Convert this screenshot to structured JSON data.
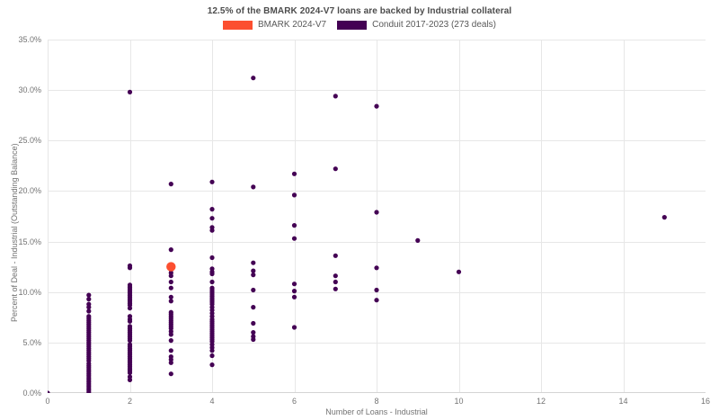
{
  "title": "12.5% of the BMARK 2024-V7 loans are backed by Industrial collateral",
  "legend": {
    "items": [
      {
        "label": "BMARK 2024-V7",
        "color": "#fc4f30"
      },
      {
        "label": "Conduit 2017-2023 (273 deals)",
        "color": "#440154"
      }
    ]
  },
  "colors": {
    "bmark": "#fc4f30",
    "conduit": "#440154",
    "grid": "#e7e7e7",
    "axis_line": "#d4d4d4",
    "tick_text": "#737373",
    "title_text": "#4c4c4c"
  },
  "chart_data": {
    "type": "scatter",
    "title": "12.5% of the BMARK 2024-V7 loans are backed by Industrial collateral",
    "xlabel": "Number of Loans - Industrial",
    "ylabel": "Percent of Deal - Industrial (Outstanding Balance)",
    "xlim": [
      0,
      16
    ],
    "ylim": [
      0,
      35
    ],
    "x_ticks": [
      0,
      2,
      4,
      6,
      8,
      10,
      12,
      14,
      16
    ],
    "y_ticks": [
      {
        "value": 0,
        "label": "0.0%"
      },
      {
        "value": 5,
        "label": "5.0%"
      },
      {
        "value": 10,
        "label": "10.0%"
      },
      {
        "value": 15,
        "label": "15.0%"
      },
      {
        "value": 20,
        "label": "20.0%"
      },
      {
        "value": 25,
        "label": "25.0%"
      },
      {
        "value": 30,
        "label": "30.0%"
      },
      {
        "value": 35,
        "label": "35.0%"
      }
    ],
    "grid": true,
    "legend_position": "top-center",
    "series": [
      {
        "name": "Conduit 2017-2023 (273 deals)",
        "color": "#440154",
        "marker_radius": 2.6,
        "points": [
          [
            0,
            0.0
          ],
          [
            1,
            9.7
          ],
          [
            1,
            9.3
          ],
          [
            1,
            8.8
          ],
          [
            1,
            8.5
          ],
          [
            1,
            8.1
          ],
          [
            1,
            7.6
          ],
          [
            1,
            7.4
          ],
          [
            1,
            7.2
          ],
          [
            1,
            7.0
          ],
          [
            1,
            6.8
          ],
          [
            1,
            6.6
          ],
          [
            1,
            6.4
          ],
          [
            1,
            6.2
          ],
          [
            1,
            6.0
          ],
          [
            1,
            5.8
          ],
          [
            1,
            5.6
          ],
          [
            1,
            5.4
          ],
          [
            1,
            5.2
          ],
          [
            1,
            5.0
          ],
          [
            1,
            4.8
          ],
          [
            1,
            4.6
          ],
          [
            1,
            4.4
          ],
          [
            1,
            4.2
          ],
          [
            1,
            4.0
          ],
          [
            1,
            3.8
          ],
          [
            1,
            3.6
          ],
          [
            1,
            3.4
          ],
          [
            1,
            3.2
          ],
          [
            1,
            2.9
          ],
          [
            1,
            2.7
          ],
          [
            1,
            2.5
          ],
          [
            1,
            2.3
          ],
          [
            1,
            2.1
          ],
          [
            1,
            1.9
          ],
          [
            1,
            1.7
          ],
          [
            1,
            1.5
          ],
          [
            1,
            1.3
          ],
          [
            1,
            1.1
          ],
          [
            1,
            0.9
          ],
          [
            1,
            0.7
          ],
          [
            1,
            0.5
          ],
          [
            1,
            0.3
          ],
          [
            1,
            0.1
          ],
          [
            2,
            29.8
          ],
          [
            2,
            12.6
          ],
          [
            2,
            12.4
          ],
          [
            2,
            10.7
          ],
          [
            2,
            10.5
          ],
          [
            2,
            10.3
          ],
          [
            2,
            10.1
          ],
          [
            2,
            9.9
          ],
          [
            2,
            9.7
          ],
          [
            2,
            9.5
          ],
          [
            2,
            9.3
          ],
          [
            2,
            9.1
          ],
          [
            2,
            8.9
          ],
          [
            2,
            8.7
          ],
          [
            2,
            8.4
          ],
          [
            2,
            7.6
          ],
          [
            2,
            7.3
          ],
          [
            2,
            7.1
          ],
          [
            2,
            6.6
          ],
          [
            2,
            6.4
          ],
          [
            2,
            6.2
          ],
          [
            2,
            6.0
          ],
          [
            2,
            5.8
          ],
          [
            2,
            5.6
          ],
          [
            2,
            5.4
          ],
          [
            2,
            5.2
          ],
          [
            2,
            4.8
          ],
          [
            2,
            4.6
          ],
          [
            2,
            4.4
          ],
          [
            2,
            4.2
          ],
          [
            2,
            4.0
          ],
          [
            2,
            3.8
          ],
          [
            2,
            3.6
          ],
          [
            2,
            3.4
          ],
          [
            2,
            3.2
          ],
          [
            2,
            3.0
          ],
          [
            2,
            2.8
          ],
          [
            2,
            2.6
          ],
          [
            2,
            2.4
          ],
          [
            2,
            2.2
          ],
          [
            2,
            2.0
          ],
          [
            2,
            1.6
          ],
          [
            2,
            1.3
          ],
          [
            3,
            20.7
          ],
          [
            3,
            14.2
          ],
          [
            3,
            12.2
          ],
          [
            3,
            11.9
          ],
          [
            3,
            11.6
          ],
          [
            3,
            11.0
          ],
          [
            3,
            10.4
          ],
          [
            3,
            9.5
          ],
          [
            3,
            9.1
          ],
          [
            3,
            8.0
          ],
          [
            3,
            7.8
          ],
          [
            3,
            7.6
          ],
          [
            3,
            7.4
          ],
          [
            3,
            7.2
          ],
          [
            3,
            7.0
          ],
          [
            3,
            6.8
          ],
          [
            3,
            6.6
          ],
          [
            3,
            6.4
          ],
          [
            3,
            6.1
          ],
          [
            3,
            5.8
          ],
          [
            3,
            5.2
          ],
          [
            3,
            4.2
          ],
          [
            3,
            3.6
          ],
          [
            3,
            3.3
          ],
          [
            3,
            3.0
          ],
          [
            3,
            1.9
          ],
          [
            4,
            20.9
          ],
          [
            4,
            18.2
          ],
          [
            4,
            17.3
          ],
          [
            4,
            16.4
          ],
          [
            4,
            16.1
          ],
          [
            4,
            13.4
          ],
          [
            4,
            12.3
          ],
          [
            4,
            12.0
          ],
          [
            4,
            11.8
          ],
          [
            4,
            11.0
          ],
          [
            4,
            10.4
          ],
          [
            4,
            10.2
          ],
          [
            4,
            10.0
          ],
          [
            4,
            9.8
          ],
          [
            4,
            9.6
          ],
          [
            4,
            9.4
          ],
          [
            4,
            9.2
          ],
          [
            4,
            9.0
          ],
          [
            4,
            8.8
          ],
          [
            4,
            8.5
          ],
          [
            4,
            8.2
          ],
          [
            4,
            7.9
          ],
          [
            4,
            7.6
          ],
          [
            4,
            7.3
          ],
          [
            4,
            7.1
          ],
          [
            4,
            6.9
          ],
          [
            4,
            6.7
          ],
          [
            4,
            6.5
          ],
          [
            4,
            6.3
          ],
          [
            4,
            6.1
          ],
          [
            4,
            5.9
          ],
          [
            4,
            5.7
          ],
          [
            4,
            5.5
          ],
          [
            4,
            5.3
          ],
          [
            4,
            5.1
          ],
          [
            4,
            4.8
          ],
          [
            4,
            4.5
          ],
          [
            4,
            4.2
          ],
          [
            4,
            3.7
          ],
          [
            4,
            2.8
          ],
          [
            5,
            31.2
          ],
          [
            5,
            20.4
          ],
          [
            5,
            12.9
          ],
          [
            5,
            12.1
          ],
          [
            5,
            11.7
          ],
          [
            5,
            10.2
          ],
          [
            5,
            8.5
          ],
          [
            5,
            6.9
          ],
          [
            5,
            6.0
          ],
          [
            5,
            5.6
          ],
          [
            5,
            5.3
          ],
          [
            6,
            21.7
          ],
          [
            6,
            19.6
          ],
          [
            6,
            16.6
          ],
          [
            6,
            15.3
          ],
          [
            6,
            10.8
          ],
          [
            6,
            10.1
          ],
          [
            6,
            9.5
          ],
          [
            6,
            6.5
          ],
          [
            7,
            29.4
          ],
          [
            7,
            22.2
          ],
          [
            7,
            13.6
          ],
          [
            7,
            11.6
          ],
          [
            7,
            11.0
          ],
          [
            7,
            10.3
          ],
          [
            8,
            28.4
          ],
          [
            8,
            17.9
          ],
          [
            8,
            12.4
          ],
          [
            8,
            10.2
          ],
          [
            8,
            9.2
          ],
          [
            9,
            15.1
          ],
          [
            10,
            12.0
          ],
          [
            15,
            17.4
          ]
        ]
      },
      {
        "name": "BMARK 2024-V7",
        "color": "#fc4f30",
        "marker_radius": 5.2,
        "points": [
          [
            3,
            12.5
          ]
        ]
      }
    ]
  }
}
